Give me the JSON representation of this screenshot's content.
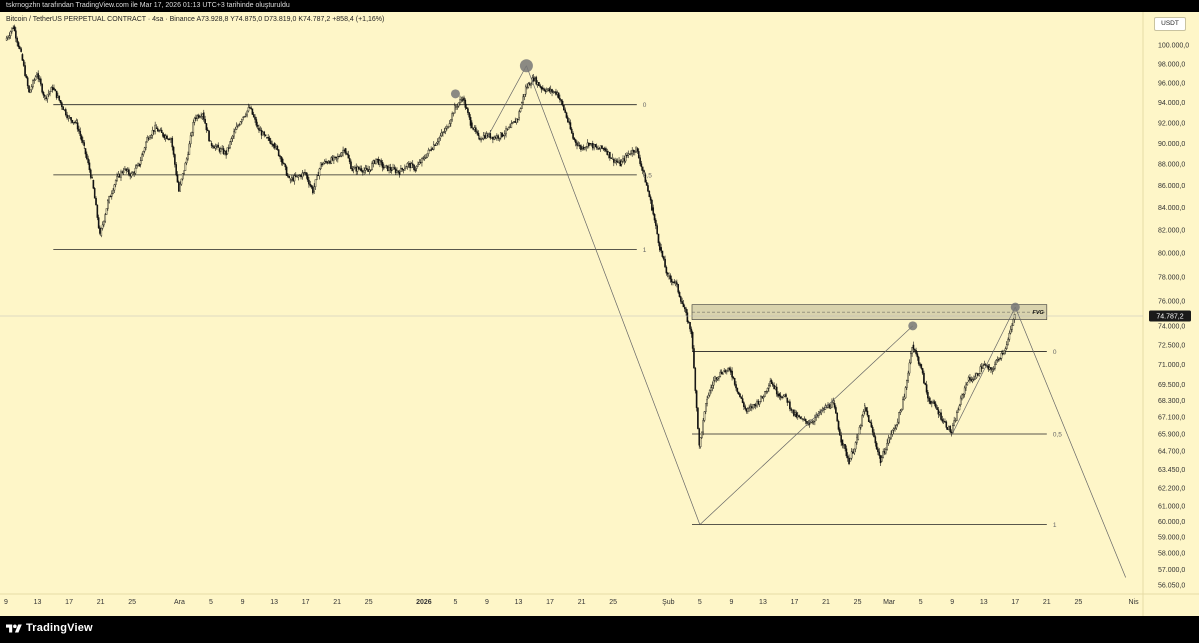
{
  "header": {
    "caption": "tskrnogzhn tarafından TradingView.com ile Mar 17, 2026 01:13 UTC+3 tarihinde oluşturuldu",
    "symbol_info": "Bitcoin / TetherUS PERPETUAL CONTRACT · 4sa · Binance  A73.928,8  Y74.875,0  D73.819,0  K74.787,2  +858,4 (+1,16%)",
    "currency": "USDT"
  },
  "footer": {
    "brand": "TradingView"
  },
  "colors": {
    "background": "#fef6c8",
    "candles": "#111111",
    "levels": "#222222",
    "pivot_marker": "#777777",
    "fvg_fill": "#d9d3ad",
    "price_badge": "#1a1a1a"
  },
  "chart_data": {
    "type": "candlestick",
    "symbol": "Bitcoin / TetherUS PERPETUAL CONTRACT",
    "interval": "4sa",
    "exchange": "Binance",
    "ohlc_last": {
      "open": "73.928,8",
      "high": "74.875,0",
      "low": "73.819,0",
      "close": "74.787,2",
      "change": "+858,4",
      "change_pct": "+1,16%"
    },
    "current_price": 74787.2,
    "current_price_label": "74.787,2",
    "ylim": [
      55000,
      103000
    ],
    "y_ticks": [
      {
        "v": 100000,
        "l": "100.000,0"
      },
      {
        "v": 98000,
        "l": "98.000,0"
      },
      {
        "v": 96000,
        "l": "96.000,0"
      },
      {
        "v": 94000,
        "l": "94.000,0"
      },
      {
        "v": 92000,
        "l": "92.000,0"
      },
      {
        "v": 90000,
        "l": "90.000,0"
      },
      {
        "v": 88000,
        "l": "88.000,0"
      },
      {
        "v": 86000,
        "l": "86.000,0"
      },
      {
        "v": 84000,
        "l": "84.000,0"
      },
      {
        "v": 82000,
        "l": "82.000,0"
      },
      {
        "v": 80000,
        "l": "80.000,0"
      },
      {
        "v": 78000,
        "l": "78.000,0"
      },
      {
        "v": 76000,
        "l": "76.000,0"
      },
      {
        "v": 74000,
        "l": "74.000,0"
      },
      {
        "v": 72500,
        "l": "72.500,0"
      },
      {
        "v": 71000,
        "l": "71.000,0"
      },
      {
        "v": 69500,
        "l": "69.500,0"
      },
      {
        "v": 68300,
        "l": "68.300,0"
      },
      {
        "v": 67100,
        "l": "67.100,0"
      },
      {
        "v": 65900,
        "l": "65.900,0"
      },
      {
        "v": 64700,
        "l": "64.700,0"
      },
      {
        "v": 63450,
        "l": "63.450,0"
      },
      {
        "v": 62200,
        "l": "62.200,0"
      },
      {
        "v": 61000,
        "l": "61.000,0"
      },
      {
        "v": 60000,
        "l": "60.000,0"
      },
      {
        "v": 59000,
        "l": "59.000,0"
      },
      {
        "v": 58000,
        "l": "58.000,0"
      },
      {
        "v": 57000,
        "l": "57.000,0"
      },
      {
        "v": 56050,
        "l": "56.050,0"
      }
    ],
    "x_ticks": [
      {
        "d": "2025-11-09",
        "l": "9"
      },
      {
        "d": "2025-11-13",
        "l": "13"
      },
      {
        "d": "2025-11-17",
        "l": "17"
      },
      {
        "d": "2025-11-21",
        "l": "21"
      },
      {
        "d": "2025-11-25",
        "l": "25"
      },
      {
        "d": "2025-12-01",
        "l": "Ara"
      },
      {
        "d": "2025-12-05",
        "l": "5"
      },
      {
        "d": "2025-12-09",
        "l": "9"
      },
      {
        "d": "2025-12-13",
        "l": "13"
      },
      {
        "d": "2025-12-17",
        "l": "17"
      },
      {
        "d": "2025-12-21",
        "l": "21"
      },
      {
        "d": "2025-12-25",
        "l": "25"
      },
      {
        "d": "2026-01-01",
        "l": "2026",
        "bold": true
      },
      {
        "d": "2026-01-05",
        "l": "5"
      },
      {
        "d": "2026-01-09",
        "l": "9"
      },
      {
        "d": "2026-01-13",
        "l": "13"
      },
      {
        "d": "2026-01-17",
        "l": "17"
      },
      {
        "d": "2026-01-21",
        "l": "21"
      },
      {
        "d": "2026-01-25",
        "l": "25"
      },
      {
        "d": "2026-02-01",
        "l": "Şub"
      },
      {
        "d": "2026-02-05",
        "l": "5"
      },
      {
        "d": "2026-02-09",
        "l": "9"
      },
      {
        "d": "2026-02-13",
        "l": "13"
      },
      {
        "d": "2026-02-17",
        "l": "17"
      },
      {
        "d": "2026-02-21",
        "l": "21"
      },
      {
        "d": "2026-02-25",
        "l": "25"
      },
      {
        "d": "2026-03-01",
        "l": "Mar"
      },
      {
        "d": "2026-03-05",
        "l": "5"
      },
      {
        "d": "2026-03-09",
        "l": "9"
      },
      {
        "d": "2026-03-13",
        "l": "13"
      },
      {
        "d": "2026-03-17",
        "l": "17"
      },
      {
        "d": "2026-03-21",
        "l": "21"
      },
      {
        "d": "2026-03-25",
        "l": "25"
      },
      {
        "d": "2026-04-01",
        "l": "Nis"
      }
    ],
    "price_path": [
      [
        "2025-11-09",
        100500
      ],
      [
        "2025-11-10",
        102000
      ],
      [
        "2025-11-11",
        99000
      ],
      [
        "2025-11-12",
        95000
      ],
      [
        "2025-11-13",
        97000
      ],
      [
        "2025-11-14",
        94500
      ],
      [
        "2025-11-15",
        95500
      ],
      [
        "2025-11-16",
        94000
      ],
      [
        "2025-11-17",
        92500
      ],
      [
        "2025-11-18",
        92000
      ],
      [
        "2025-11-19",
        89500
      ],
      [
        "2025-11-20",
        86500
      ],
      [
        "2025-11-21",
        81500
      ],
      [
        "2025-11-22",
        84500
      ],
      [
        "2025-11-23",
        86500
      ],
      [
        "2025-11-24",
        87500
      ],
      [
        "2025-11-25",
        87000
      ],
      [
        "2025-11-26",
        88000
      ],
      [
        "2025-11-27",
        90500
      ],
      [
        "2025-11-28",
        91500
      ],
      [
        "2025-11-29",
        90800
      ],
      [
        "2025-11-30",
        90500
      ],
      [
        "2025-12-01",
        85500
      ],
      [
        "2025-12-02",
        88500
      ],
      [
        "2025-12-03",
        92500
      ],
      [
        "2025-12-04",
        93000
      ],
      [
        "2025-12-05",
        90000
      ],
      [
        "2025-12-06",
        89500
      ],
      [
        "2025-12-07",
        89000
      ],
      [
        "2025-12-08",
        91000
      ],
      [
        "2025-12-09",
        92500
      ],
      [
        "2025-12-10",
        93500
      ],
      [
        "2025-12-11",
        91500
      ],
      [
        "2025-12-12",
        90500
      ],
      [
        "2025-12-13",
        90000
      ],
      [
        "2025-12-14",
        88500
      ],
      [
        "2025-12-15",
        86500
      ],
      [
        "2025-12-16",
        86800
      ],
      [
        "2025-12-17",
        87200
      ],
      [
        "2025-12-18",
        85500
      ],
      [
        "2025-12-19",
        88000
      ],
      [
        "2025-12-20",
        88300
      ],
      [
        "2025-12-21",
        88500
      ],
      [
        "2025-12-22",
        89500
      ],
      [
        "2025-12-23",
        87500
      ],
      [
        "2025-12-24",
        87600
      ],
      [
        "2025-12-25",
        87300
      ],
      [
        "2025-12-26",
        88500
      ],
      [
        "2025-12-27",
        87700
      ],
      [
        "2025-12-28",
        87500
      ],
      [
        "2025-12-29",
        87300
      ],
      [
        "2025-12-30",
        88000
      ],
      [
        "2025-12-31",
        87600
      ],
      [
        "2026-01-01",
        88500
      ],
      [
        "2026-01-02",
        89500
      ],
      [
        "2026-01-03",
        90500
      ],
      [
        "2026-01-04",
        91500
      ],
      [
        "2026-01-05",
        93500
      ],
      [
        "2026-01-06",
        94500
      ],
      [
        "2026-01-07",
        92000
      ],
      [
        "2026-01-08",
        90500
      ],
      [
        "2026-01-09",
        90800
      ],
      [
        "2026-01-10",
        90600
      ],
      [
        "2026-01-11",
        90800
      ],
      [
        "2026-01-12",
        91500
      ],
      [
        "2026-01-13",
        92500
      ],
      [
        "2026-01-14",
        95500
      ],
      [
        "2026-01-15",
        96500
      ],
      [
        "2026-01-16",
        95500
      ],
      [
        "2026-01-17",
        95200
      ],
      [
        "2026-01-18",
        95000
      ],
      [
        "2026-01-19",
        93000
      ],
      [
        "2026-01-20",
        90500
      ],
      [
        "2026-01-21",
        89500
      ],
      [
        "2026-01-22",
        90000
      ],
      [
        "2026-01-23",
        89500
      ],
      [
        "2026-01-24",
        89500
      ],
      [
        "2026-01-25",
        88500
      ],
      [
        "2026-01-26",
        88000
      ],
      [
        "2026-01-27",
        89000
      ],
      [
        "2026-01-28",
        89500
      ],
      [
        "2026-01-29",
        87000
      ],
      [
        "2026-01-30",
        84000
      ],
      [
        "2026-01-31",
        80500
      ],
      [
        "2026-02-01",
        78000
      ],
      [
        "2026-02-02",
        77500
      ],
      [
        "2026-02-03",
        75500
      ],
      [
        "2026-02-04",
        73500
      ],
      [
        "2026-02-05",
        65000
      ],
      [
        "2026-02-06",
        68500
      ],
      [
        "2026-02-07",
        70000
      ],
      [
        "2026-02-08",
        70500
      ],
      [
        "2026-02-09",
        70500
      ],
      [
        "2026-02-10",
        68800
      ],
      [
        "2026-02-11",
        67500
      ],
      [
        "2026-02-12",
        68000
      ],
      [
        "2026-02-13",
        68500
      ],
      [
        "2026-02-14",
        69800
      ],
      [
        "2026-02-15",
        68800
      ],
      [
        "2026-02-16",
        68500
      ],
      [
        "2026-02-17",
        67300
      ],
      [
        "2026-02-18",
        66900
      ],
      [
        "2026-02-19",
        66700
      ],
      [
        "2026-02-20",
        67200
      ],
      [
        "2026-02-21",
        67800
      ],
      [
        "2026-02-22",
        68100
      ],
      [
        "2026-02-23",
        65500
      ],
      [
        "2026-02-24",
        64000
      ],
      [
        "2026-02-25",
        65500
      ],
      [
        "2026-02-26",
        67800
      ],
      [
        "2026-02-27",
        66000
      ],
      [
        "2026-02-28",
        64000
      ],
      [
        "2026-03-01",
        65500
      ],
      [
        "2026-03-02",
        66600
      ],
      [
        "2026-03-03",
        68500
      ],
      [
        "2026-03-04",
        72500
      ],
      [
        "2026-03-05",
        71000
      ],
      [
        "2026-03-06",
        68500
      ],
      [
        "2026-03-07",
        67800
      ],
      [
        "2026-03-08",
        66800
      ],
      [
        "2026-03-09",
        66000
      ],
      [
        "2026-03-10",
        68000
      ],
      [
        "2026-03-11",
        69800
      ],
      [
        "2026-03-12",
        70000
      ],
      [
        "2026-03-13",
        71000
      ],
      [
        "2026-03-14",
        70500
      ],
      [
        "2026-03-15",
        71500
      ],
      [
        "2026-03-16",
        72500
      ],
      [
        "2026-03-17",
        74787
      ]
    ],
    "annotations": {
      "fib_upper": {
        "from_date": "2025-11-15",
        "to_date": "2026-01-28",
        "levels": [
          {
            "price": 93800,
            "label": "0"
          },
          {
            "price": 87000,
            "label": "0,5"
          },
          {
            "price": 80300,
            "label": "1"
          }
        ]
      },
      "fib_lower": {
        "from_date": "2026-02-04",
        "to_date": "2026-03-21",
        "levels": [
          {
            "price": 72000,
            "label": "0"
          },
          {
            "price": 65900,
            "label": "0,5"
          },
          {
            "price": 59800,
            "label": "1"
          }
        ]
      },
      "fvg_zone": {
        "from_date": "2026-02-04",
        "to_date": "2026-03-21",
        "top": 75700,
        "bottom": 74500,
        "label": "FVG"
      },
      "pivots": [
        {
          "date": "2026-01-05",
          "price": 94900,
          "size": "small"
        },
        {
          "date": "2026-01-14",
          "price": 97800,
          "size": "large"
        },
        {
          "date": "2026-03-04",
          "price": 74000,
          "size": "small"
        },
        {
          "date": "2026-03-17",
          "price": 75500,
          "size": "small"
        }
      ],
      "trendlines": [
        [
          [
            "2026-01-09",
            90500
          ],
          [
            "2026-01-14",
            97800
          ]
        ],
        [
          [
            "2026-01-14",
            97800
          ],
          [
            "2026-02-05",
            59800
          ]
        ],
        [
          [
            "2026-02-05",
            59800
          ],
          [
            "2026-03-04",
            74000
          ]
        ],
        [
          [
            "2026-03-09",
            65900
          ],
          [
            "2026-03-17",
            75500
          ]
        ],
        [
          [
            "2026-03-17",
            75500
          ],
          [
            "2026-03-31",
            56500
          ]
        ]
      ]
    }
  }
}
